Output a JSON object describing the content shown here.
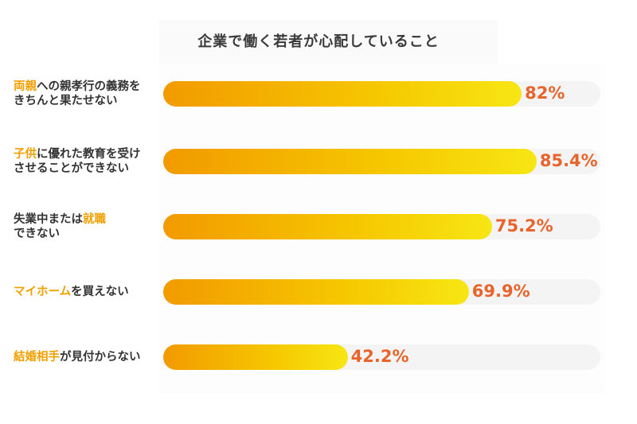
{
  "chart_data": {
    "type": "bar",
    "orientation": "horizontal",
    "title": "企業で働く若者が心配していること",
    "xlim": [
      0,
      100
    ],
    "categories": [
      [
        {
          "t": "両親",
          "h": true
        },
        {
          "t": "への親孝行の義務を",
          "h": false
        },
        {
          "t": "\n",
          "h": false
        },
        {
          "t": "きちんと果たせない",
          "h": false
        }
      ],
      [
        {
          "t": "子供",
          "h": true
        },
        {
          "t": "に優れた教育を受け",
          "h": false
        },
        {
          "t": "\n",
          "h": false
        },
        {
          "t": "させることができない",
          "h": false
        }
      ],
      [
        {
          "t": "失業中または",
          "h": false
        },
        {
          "t": "就職",
          "h": true
        },
        {
          "t": "\n",
          "h": false
        },
        {
          "t": "できない",
          "h": false
        }
      ],
      [
        {
          "t": "マイホーム",
          "h": true
        },
        {
          "t": "を買えない",
          "h": false
        }
      ],
      [
        {
          "t": "結婚相手",
          "h": true
        },
        {
          "t": "が見付からない",
          "h": false
        }
      ]
    ],
    "values": [
      82,
      85.4,
      75.2,
      69.9,
      42.2
    ],
    "value_labels": [
      "82%",
      "85.4%",
      "75.2%",
      "69.9%",
      "42.2%"
    ],
    "colors": {
      "bar_start": "#f29a00",
      "bar_end": "#f7e614",
      "track": "#f4f4f4",
      "value_text": "#e8642c",
      "highlight_text": "#f0a000"
    }
  }
}
